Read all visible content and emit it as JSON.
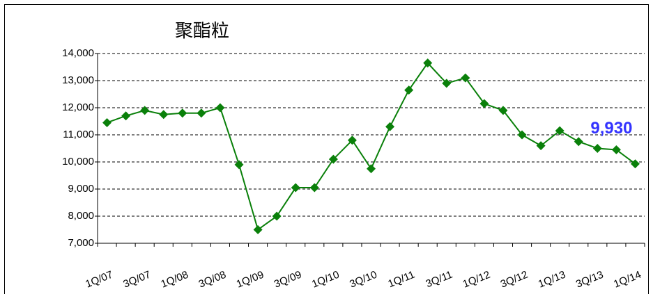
{
  "chart_data": {
    "type": "line",
    "title": "聚酯粒",
    "categories": [
      "1Q/07",
      null,
      "3Q/07",
      null,
      "1Q/08",
      null,
      "3Q/08",
      null,
      "1Q/09",
      null,
      "3Q/09",
      null,
      "1Q/10",
      null,
      "3Q/10",
      null,
      "1Q/11",
      null,
      "3Q/11",
      null,
      "1Q/12",
      null,
      "3Q/12",
      null,
      "1Q/13",
      null,
      "3Q/13",
      null,
      "1Q/14"
    ],
    "series": [
      {
        "color": "#0a800a",
        "values": [
          11450,
          11700,
          11900,
          11750,
          11800,
          11800,
          12000,
          9900,
          7500,
          8000,
          9050,
          9050,
          10100,
          10800,
          9750,
          11300,
          12650,
          13650,
          12900,
          13100,
          12150,
          11900,
          11000,
          10600,
          11150,
          10750,
          10500,
          10450,
          9930
        ],
        "value_labels": [
          null,
          null,
          null,
          null,
          null,
          null,
          null,
          null,
          null,
          null,
          null,
          null,
          null,
          null,
          null,
          null,
          null,
          null,
          null,
          null,
          null,
          null,
          null,
          null,
          null,
          null,
          null,
          null,
          "9,930"
        ],
        "value_label_color": "#3333ff"
      }
    ],
    "ylim": [
      7000,
      14000
    ],
    "yticks": [
      {
        "value": 7000,
        "label": "7,000"
      },
      {
        "value": 8000,
        "label": "8,000"
      },
      {
        "value": 9000,
        "label": "9,000"
      },
      {
        "value": 10000,
        "label": "10,000"
      },
      {
        "value": 11000,
        "label": "11,000"
      },
      {
        "value": 12000,
        "label": "12,000"
      },
      {
        "value": 13000,
        "label": "13,000"
      },
      {
        "value": 14000,
        "label": "14,000"
      }
    ],
    "grid": true
  }
}
